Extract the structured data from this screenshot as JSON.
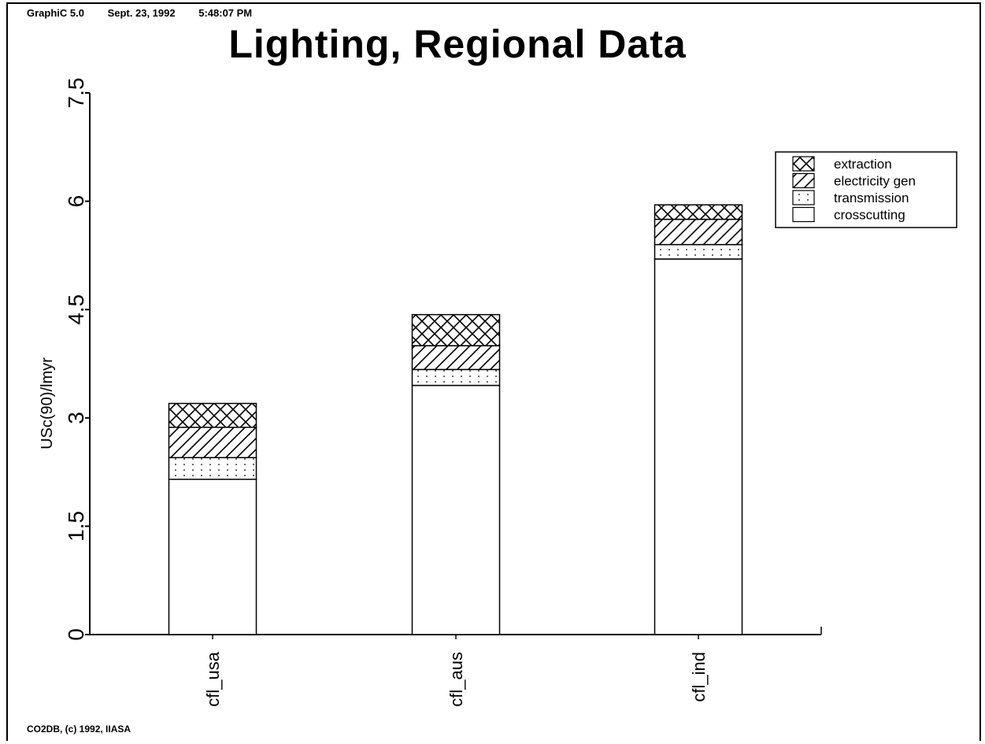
{
  "header": {
    "program": "GraphiC 5.0",
    "date": "Sept. 23, 1992",
    "time": "5:48:07 PM"
  },
  "footer": {
    "copyright": "CO2DB, (c) 1992, IIASA"
  },
  "chart_data": {
    "type": "bar",
    "stacked": true,
    "title": "Lighting, Regional Data",
    "xlabel": "",
    "ylabel": "USc(90)/lmyr",
    "ylim": [
      0,
      7.5
    ],
    "yticks": [
      0,
      1.5,
      3,
      4.5,
      6,
      7.5
    ],
    "ytick_labels": [
      "0",
      "1.5",
      "3",
      "4.5",
      "6",
      "7.5"
    ],
    "grid": false,
    "legend_position": "top-right",
    "categories": [
      "cfl_usa",
      "cfl_aus",
      "cfl_ind"
    ],
    "series": [
      {
        "name": "crosscutting",
        "pattern": "blank",
        "values": [
          2.15,
          3.45,
          5.2
        ]
      },
      {
        "name": "transmission",
        "pattern": "dots",
        "values": [
          0.3,
          0.22,
          0.2
        ]
      },
      {
        "name": "electricity gen",
        "pattern": "diagonal",
        "values": [
          0.42,
          0.33,
          0.35
        ]
      },
      {
        "name": "extraction",
        "pattern": "crosshatch",
        "values": [
          0.33,
          0.43,
          0.2
        ]
      }
    ]
  }
}
